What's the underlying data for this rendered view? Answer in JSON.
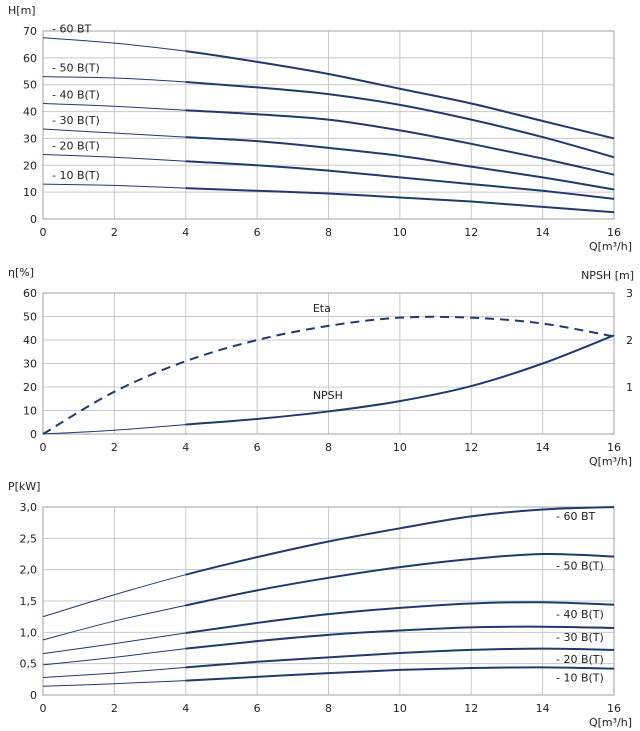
{
  "colors": {
    "curve": "#1f3a6e",
    "grid": "#c8c8c8",
    "frame": "#a0a0a0",
    "text": "#222222"
  },
  "chart_data": [
    {
      "type": "line",
      "title": "",
      "xlabel": "Q[m³/h]",
      "ylabel": "H[m]",
      "xlim": [
        0,
        16
      ],
      "ylim": [
        0,
        70
      ],
      "xticks": [
        0,
        2,
        4,
        6,
        8,
        10,
        12,
        14,
        16
      ],
      "yticks": [
        0,
        10,
        20,
        30,
        40,
        50,
        60,
        70
      ],
      "grid": true,
      "series": [
        {
          "name": "- 60 BT",
          "x": [
            0,
            2,
            4,
            6,
            8,
            10,
            12,
            14,
            16
          ],
          "y": [
            67.5,
            65.5,
            62.5,
            58.5,
            54,
            48.5,
            43,
            36.5,
            30
          ],
          "thin_until_x": 4
        },
        {
          "name": "- 50 B(T)",
          "x": [
            0,
            2,
            4,
            6,
            8,
            10,
            12,
            14,
            16
          ],
          "y": [
            53,
            52.5,
            51,
            49,
            46.5,
            42.5,
            37,
            30.5,
            23
          ],
          "thin_until_x": 4
        },
        {
          "name": "- 40 B(T)",
          "x": [
            0,
            2,
            4,
            6,
            8,
            10,
            12,
            14,
            16
          ],
          "y": [
            43,
            42,
            40.5,
            39,
            37,
            33,
            28,
            22.5,
            16.5
          ],
          "thin_until_x": 4
        },
        {
          "name": "- 30 B(T)",
          "x": [
            0,
            2,
            4,
            6,
            8,
            10,
            12,
            14,
            16
          ],
          "y": [
            33.5,
            32,
            30.5,
            29,
            26.5,
            23.5,
            19.5,
            15.5,
            11
          ],
          "thin_until_x": 4
        },
        {
          "name": "- 20 B(T)",
          "x": [
            0,
            2,
            4,
            6,
            8,
            10,
            12,
            14,
            16
          ],
          "y": [
            24,
            23,
            21.5,
            20,
            18,
            15.5,
            13,
            10.5,
            7.5
          ],
          "thin_until_x": 4
        },
        {
          "name": "- 10 B(T)",
          "x": [
            0,
            2,
            4,
            6,
            8,
            10,
            12,
            14,
            16
          ],
          "y": [
            13,
            12.5,
            11.5,
            10.5,
            9.5,
            8,
            6.5,
            4.5,
            2.5
          ],
          "thin_until_x": 4
        }
      ]
    },
    {
      "type": "line",
      "title": "",
      "xlabel": "Q[m³/h]",
      "ylabel": "η[%]",
      "y2label": "NPSH [m]",
      "xlim": [
        0,
        16
      ],
      "ylim": [
        0,
        60
      ],
      "y2lim": [
        0,
        3
      ],
      "xticks": [
        0,
        2,
        4,
        6,
        8,
        10,
        12,
        14,
        16
      ],
      "yticks": [
        0,
        10,
        20,
        30,
        40,
        50,
        60
      ],
      "y2ticks": [
        1,
        2,
        3
      ],
      "grid": true,
      "series": [
        {
          "name": "Eta",
          "axis": "left",
          "style": "dashed",
          "x": [
            0,
            2,
            4,
            6,
            8,
            10,
            12,
            14,
            16
          ],
          "y": [
            0,
            18,
            31,
            40,
            46,
            49.5,
            49.5,
            47,
            41.5
          ],
          "label_x": 7,
          "label_y": 49
        },
        {
          "name": "NPSH",
          "axis": "right",
          "style": "solid",
          "x": [
            0,
            2,
            4,
            6,
            8,
            10,
            12,
            14,
            16
          ],
          "y": [
            0,
            0.08,
            0.2,
            0.32,
            0.48,
            0.7,
            1.02,
            1.5,
            2.1
          ],
          "thin_until_x": 4,
          "label_x": 7,
          "label_y": 0.6
        }
      ]
    },
    {
      "type": "line",
      "title": "",
      "xlabel": "Q[m³/h]",
      "ylabel": "P[kW]",
      "xlim": [
        0,
        16
      ],
      "ylim": [
        0,
        3
      ],
      "xticks": [
        0,
        2,
        4,
        6,
        8,
        10,
        12,
        14,
        16
      ],
      "yticks": [
        "0",
        "0,5",
        "1,0",
        "1,5",
        "2,0",
        "2,5",
        "3,0"
      ],
      "grid": true,
      "series": [
        {
          "name": "- 60 BT",
          "x": [
            0,
            2,
            4,
            6,
            8,
            10,
            12,
            14,
            16
          ],
          "y": [
            1.25,
            1.6,
            1.92,
            2.2,
            2.45,
            2.66,
            2.85,
            2.96,
            3.0
          ],
          "thin_until_x": 4
        },
        {
          "name": "- 50 B(T)",
          "x": [
            0,
            2,
            4,
            6,
            8,
            10,
            12,
            14,
            16
          ],
          "y": [
            0.88,
            1.18,
            1.43,
            1.67,
            1.87,
            2.04,
            2.17,
            2.25,
            2.21
          ],
          "thin_until_x": 4
        },
        {
          "name": "- 40 B(T)",
          "x": [
            0,
            2,
            4,
            6,
            8,
            10,
            12,
            14,
            16
          ],
          "y": [
            0.66,
            0.82,
            0.99,
            1.15,
            1.29,
            1.39,
            1.46,
            1.48,
            1.44
          ],
          "thin_until_x": 4
        },
        {
          "name": "- 30 B(T)",
          "x": [
            0,
            2,
            4,
            6,
            8,
            10,
            12,
            14,
            16
          ],
          "y": [
            0.48,
            0.6,
            0.74,
            0.86,
            0.96,
            1.03,
            1.08,
            1.09,
            1.07
          ],
          "thin_until_x": 4
        },
        {
          "name": "- 20 B(T)",
          "x": [
            0,
            2,
            4,
            6,
            8,
            10,
            12,
            14,
            16
          ],
          "y": [
            0.28,
            0.35,
            0.44,
            0.53,
            0.6,
            0.67,
            0.72,
            0.74,
            0.72
          ],
          "thin_until_x": 4
        },
        {
          "name": "- 10 B(T)",
          "x": [
            0,
            2,
            4,
            6,
            8,
            10,
            12,
            14,
            16
          ],
          "y": [
            0.14,
            0.18,
            0.23,
            0.29,
            0.35,
            0.4,
            0.43,
            0.44,
            0.42
          ],
          "thin_until_x": 4
        }
      ]
    }
  ]
}
